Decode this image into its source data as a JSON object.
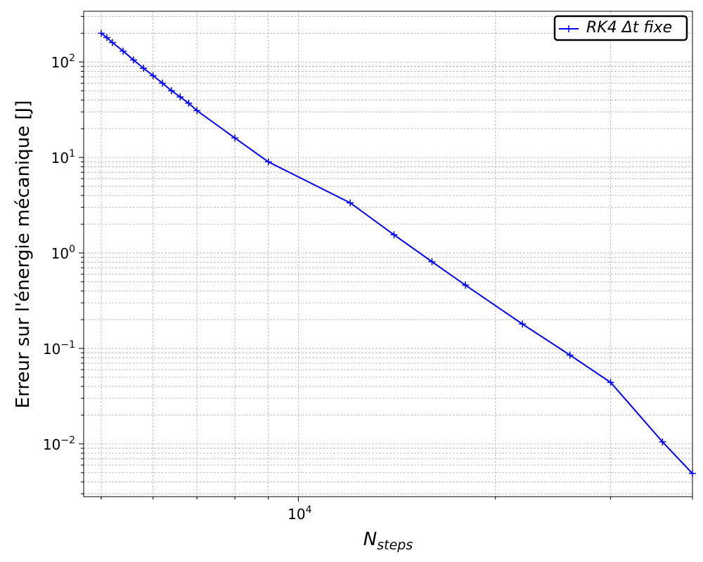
{
  "chart_data": {
    "type": "line",
    "xscale": "log",
    "yscale": "log",
    "xlim": [
      4700,
      40000
    ],
    "ylim": [
      0.0028,
      340
    ],
    "grid": true,
    "legend_position": "top-right",
    "xlabel": "N",
    "xlabel_sub": "steps",
    "ylabel": "Erreur sur l'énergie mécanique [J]",
    "x_major_ticks": [
      {
        "value": 10000,
        "base": "10",
        "exp": "4"
      }
    ],
    "y_major_ticks": [
      {
        "value": 100,
        "base": "10",
        "exp": "2"
      },
      {
        "value": 10,
        "base": "10",
        "exp": "1"
      },
      {
        "value": 1,
        "base": "10",
        "exp": "0"
      },
      {
        "value": 0.1,
        "base": "10",
        "exp": "−1"
      },
      {
        "value": 0.01,
        "base": "10",
        "exp": "−2"
      }
    ],
    "series": [
      {
        "name": "RK4 Δt fixe",
        "color": "#0000ff",
        "marker": "+",
        "x": [
          5000,
          5100,
          5200,
          5400,
          5600,
          5800,
          6000,
          6200,
          6400,
          6600,
          6800,
          7000,
          8000,
          9000,
          12000,
          14000,
          16000,
          18000,
          22000,
          26000,
          30000,
          36000,
          40000
        ],
        "y": [
          200,
          180,
          160,
          130,
          105,
          86,
          72,
          60,
          50,
          43,
          37,
          31,
          16,
          9,
          3.35,
          1.55,
          0.81,
          0.46,
          0.18,
          0.085,
          0.044,
          0.0105,
          0.0049
        ]
      }
    ]
  }
}
